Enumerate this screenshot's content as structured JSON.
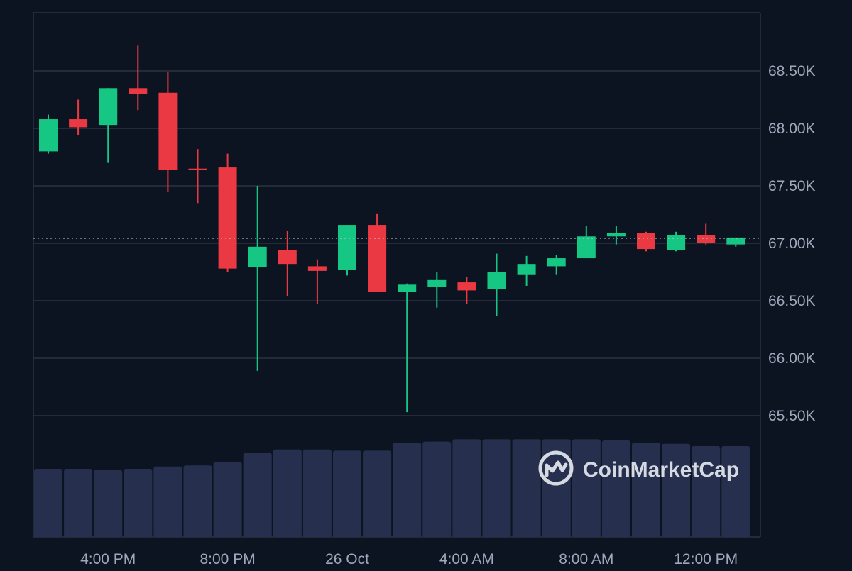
{
  "brand": {
    "name": "CoinMarketCap"
  },
  "colors": {
    "background": "#0d1421",
    "grid": "#2b3240",
    "up": "#16c784",
    "down": "#ea3943",
    "volume": "#26304e",
    "axis_text": "#a1a7bb",
    "last_price_line": "#c8ccd6",
    "logo": "#d5d9e2"
  },
  "chart_data": {
    "type": "candlestick",
    "y_axis": {
      "ticks": [
        68500,
        68000,
        67500,
        67000,
        66500,
        66000,
        65500
      ],
      "tick_labels": [
        "68.50K",
        "68.00K",
        "67.50K",
        "67.00K",
        "66.50K",
        "66.00K",
        "65.50K"
      ],
      "range": [
        65300,
        68980
      ],
      "side": "right"
    },
    "x_axis": {
      "tick_labels": [
        "4:00 PM",
        "8:00 PM",
        "26 Oct",
        "4:00 AM",
        "8:00 AM",
        "12:00 PM"
      ],
      "tick_candle_index": [
        2,
        6,
        10,
        14,
        18,
        22
      ]
    },
    "last_price_line": 67045,
    "grid": true,
    "candles": [
      {
        "o": 67800,
        "h": 68120,
        "l": 67780,
        "c": 68080
      },
      {
        "o": 68080,
        "h": 68250,
        "l": 67940,
        "c": 68010
      },
      {
        "o": 68030,
        "h": 68350,
        "l": 67700,
        "c": 68350
      },
      {
        "o": 68350,
        "h": 68720,
        "l": 68160,
        "c": 68300
      },
      {
        "o": 68310,
        "h": 68490,
        "l": 67450,
        "c": 67640
      },
      {
        "o": 67650,
        "h": 67820,
        "l": 67350,
        "c": 67640
      },
      {
        "o": 67660,
        "h": 67780,
        "l": 66750,
        "c": 66780
      },
      {
        "o": 66790,
        "h": 67500,
        "l": 65890,
        "c": 66970
      },
      {
        "o": 66940,
        "h": 67110,
        "l": 66540,
        "c": 66820
      },
      {
        "o": 66800,
        "h": 66860,
        "l": 66470,
        "c": 66760
      },
      {
        "o": 66770,
        "h": 67160,
        "l": 66720,
        "c": 67160
      },
      {
        "o": 67160,
        "h": 67260,
        "l": 66580,
        "c": 66580
      },
      {
        "o": 66580,
        "h": 66650,
        "l": 65530,
        "c": 66640
      },
      {
        "o": 66620,
        "h": 66750,
        "l": 66440,
        "c": 66680
      },
      {
        "o": 66660,
        "h": 66710,
        "l": 66470,
        "c": 66590
      },
      {
        "o": 66600,
        "h": 66910,
        "l": 66370,
        "c": 66750
      },
      {
        "o": 66730,
        "h": 66890,
        "l": 66630,
        "c": 66820
      },
      {
        "o": 66800,
        "h": 66900,
        "l": 66730,
        "c": 66870
      },
      {
        "o": 66870,
        "h": 67150,
        "l": 66870,
        "c": 67060
      },
      {
        "o": 67060,
        "h": 67150,
        "l": 66990,
        "c": 67090
      },
      {
        "o": 67090,
        "h": 67100,
        "l": 66930,
        "c": 66950
      },
      {
        "o": 66940,
        "h": 67100,
        "l": 66930,
        "c": 67070
      },
      {
        "o": 67070,
        "h": 67170,
        "l": 66990,
        "c": 67000
      },
      {
        "o": 66990,
        "h": 67050,
        "l": 66970,
        "c": 67050
      }
    ],
    "volume_relative": [
      0.6,
      0.6,
      0.59,
      0.6,
      0.62,
      0.63,
      0.66,
      0.74,
      0.77,
      0.77,
      0.76,
      0.76,
      0.83,
      0.84,
      0.86,
      0.86,
      0.86,
      0.86,
      0.86,
      0.85,
      0.83,
      0.82,
      0.8,
      0.8
    ]
  }
}
